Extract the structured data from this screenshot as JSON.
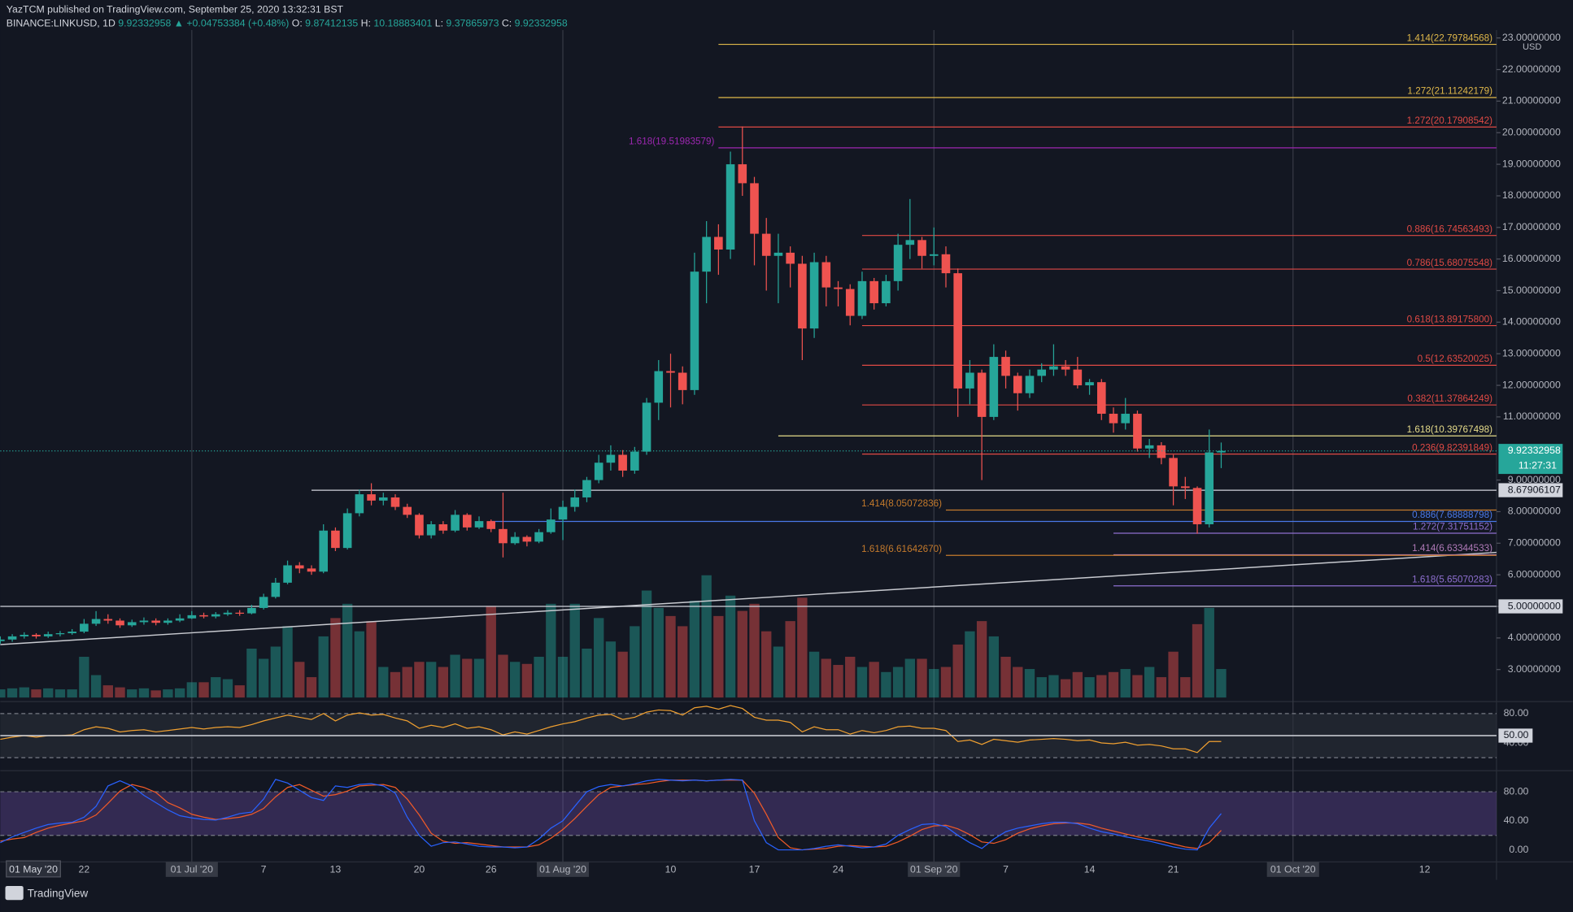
{
  "header": {
    "author": "YazTCM published on TradingView.com, September 25, 2020 13:32:31 BST",
    "symbol": "BINANCE:LINKUSD, 1D",
    "change": "▲ +0.04753384 (+0.48%)",
    "o": "O:",
    "h": "H:",
    "l": "L:",
    "c": "C:",
    "countdown": "11:27:31",
    "currency": "USD",
    "range_label": "01 May '20",
    "brand": "TradingView"
  },
  "chart_data": {
    "type": "candlestick",
    "x": [
      "2020-06-15",
      "2020-06-16",
      "2020-06-17",
      "2020-06-18",
      "2020-06-19",
      "2020-06-20",
      "2020-06-21",
      "2020-06-22",
      "2020-06-23",
      "2020-06-24",
      "2020-06-25",
      "2020-06-26",
      "2020-06-27",
      "2020-06-28",
      "2020-06-29",
      "2020-06-30",
      "2020-07-01",
      "2020-07-02",
      "2020-07-03",
      "2020-07-04",
      "2020-07-05",
      "2020-07-06",
      "2020-07-07",
      "2020-07-08",
      "2020-07-09",
      "2020-07-10",
      "2020-07-11",
      "2020-07-12",
      "2020-07-13",
      "2020-07-14",
      "2020-07-15",
      "2020-07-16",
      "2020-07-17",
      "2020-07-18",
      "2020-07-19",
      "2020-07-20",
      "2020-07-21",
      "2020-07-22",
      "2020-07-23",
      "2020-07-24",
      "2020-07-25",
      "2020-07-26",
      "2020-07-27",
      "2020-07-28",
      "2020-07-29",
      "2020-07-30",
      "2020-07-31",
      "2020-08-01",
      "2020-08-02",
      "2020-08-03",
      "2020-08-04",
      "2020-08-05",
      "2020-08-06",
      "2020-08-07",
      "2020-08-08",
      "2020-08-09",
      "2020-08-10",
      "2020-08-11",
      "2020-08-12",
      "2020-08-13",
      "2020-08-14",
      "2020-08-15",
      "2020-08-16",
      "2020-08-17",
      "2020-08-18",
      "2020-08-19",
      "2020-08-20",
      "2020-08-21",
      "2020-08-22",
      "2020-08-23",
      "2020-08-24",
      "2020-08-25",
      "2020-08-26",
      "2020-08-27",
      "2020-08-28",
      "2020-08-29",
      "2020-08-30",
      "2020-08-31",
      "2020-09-01",
      "2020-09-02",
      "2020-09-03",
      "2020-09-04",
      "2020-09-05",
      "2020-09-06",
      "2020-09-07",
      "2020-09-08",
      "2020-09-09",
      "2020-09-10",
      "2020-09-11",
      "2020-09-12",
      "2020-09-13",
      "2020-09-14",
      "2020-09-15",
      "2020-09-16",
      "2020-09-17",
      "2020-09-18",
      "2020-09-19",
      "2020-09-20",
      "2020-09-21",
      "2020-09-22",
      "2020-09-23",
      "2020-09-24",
      "2020-09-25"
    ],
    "open": [
      3.9,
      3.95,
      4.05,
      4.1,
      4.05,
      4.12,
      4.15,
      4.2,
      4.45,
      4.6,
      4.55,
      4.4,
      4.5,
      4.55,
      4.48,
      4.55,
      4.62,
      4.72,
      4.68,
      4.75,
      4.8,
      4.78,
      4.95,
      5.3,
      5.75,
      6.3,
      6.2,
      6.1,
      7.4,
      6.85,
      7.95,
      8.55,
      8.35,
      8.45,
      8.15,
      7.9,
      7.25,
      7.6,
      7.4,
      7.9,
      7.5,
      7.7,
      7.45,
      7.0,
      7.2,
      7.05,
      7.35,
      7.75,
      8.15,
      8.45,
      9.0,
      9.55,
      9.8,
      9.3,
      9.9,
      11.45,
      12.45,
      12.4,
      11.85,
      15.6,
      16.7,
      16.3,
      19.0,
      18.4,
      16.8,
      16.1,
      16.2,
      15.85,
      13.8,
      15.9,
      15.1,
      15.05,
      14.2,
      15.3,
      14.6,
      15.3,
      16.45,
      16.6,
      16.1,
      16.15,
      15.55,
      11.9,
      12.4,
      11.0,
      12.9,
      12.3,
      11.75,
      12.3,
      12.5,
      12.6,
      12.5,
      12.0,
      12.1,
      11.1,
      10.8,
      11.1,
      10.0,
      10.1,
      9.7,
      8.8,
      8.75,
      7.6,
      9.87412135
    ],
    "high": [
      4.05,
      4.12,
      4.18,
      4.15,
      4.2,
      4.22,
      4.28,
      4.6,
      4.85,
      4.75,
      4.62,
      4.58,
      4.65,
      4.62,
      4.62,
      4.75,
      4.85,
      4.8,
      4.82,
      4.88,
      4.88,
      5.05,
      5.4,
      5.9,
      6.45,
      6.4,
      6.3,
      7.6,
      7.5,
      8.1,
      8.7,
      8.9,
      8.6,
      8.55,
      8.25,
      7.95,
      7.7,
      7.7,
      8.05,
      7.95,
      7.85,
      7.75,
      8.6,
      7.35,
      7.25,
      7.45,
      8.1,
      8.35,
      8.7,
      9.1,
      9.8,
      10.1,
      9.95,
      10.05,
      11.6,
      12.8,
      13.0,
      12.6,
      16.2,
      17.2,
      17.1,
      19.4,
      20.2,
      18.6,
      17.3,
      16.8,
      16.4,
      16.1,
      16.2,
      16.1,
      15.3,
      15.2,
      15.6,
      15.4,
      15.5,
      16.8,
      17.9,
      16.7,
      17.0,
      16.4,
      15.7,
      12.8,
      12.5,
      13.3,
      13.1,
      12.4,
      12.5,
      12.7,
      13.3,
      12.8,
      12.9,
      12.2,
      12.2,
      11.3,
      11.6,
      11.2,
      10.3,
      10.2,
      9.8,
      9.1,
      8.8,
      10.6,
      10.18883401
    ],
    "low": [
      3.82,
      3.88,
      3.98,
      3.98,
      4.0,
      4.05,
      4.1,
      4.15,
      4.38,
      4.45,
      4.32,
      4.35,
      4.42,
      4.4,
      4.42,
      4.5,
      4.6,
      4.62,
      4.62,
      4.7,
      4.7,
      4.75,
      4.9,
      5.25,
      5.7,
      6.05,
      6.0,
      6.05,
      6.75,
      6.8,
      7.85,
      8.2,
      8.2,
      8.05,
      7.8,
      7.15,
      7.15,
      7.3,
      7.35,
      7.4,
      7.45,
      7.35,
      6.55,
      6.95,
      6.9,
      7.0,
      7.3,
      7.1,
      8.0,
      8.3,
      8.9,
      9.3,
      9.1,
      9.2,
      9.8,
      10.9,
      11.3,
      11.4,
      11.7,
      14.6,
      15.5,
      16.0,
      18.0,
      15.8,
      15.0,
      14.6,
      15.1,
      12.8,
      13.5,
      14.5,
      14.5,
      13.9,
      14.1,
      14.4,
      14.5,
      15.0,
      16.0,
      15.7,
      15.8,
      15.1,
      11.0,
      11.4,
      9.0,
      10.9,
      11.9,
      11.2,
      11.6,
      12.1,
      12.3,
      12.3,
      11.9,
      11.7,
      10.9,
      10.5,
      10.6,
      9.9,
      9.7,
      9.5,
      8.2,
      8.4,
      7.3,
      7.5,
      9.37865973
    ],
    "close": [
      3.95,
      4.05,
      4.1,
      4.05,
      4.12,
      4.15,
      4.2,
      4.45,
      4.6,
      4.55,
      4.4,
      4.5,
      4.55,
      4.48,
      4.55,
      4.62,
      4.72,
      4.68,
      4.75,
      4.8,
      4.78,
      4.95,
      5.3,
      5.75,
      6.3,
      6.2,
      6.1,
      7.4,
      6.85,
      7.95,
      8.55,
      8.35,
      8.45,
      8.15,
      7.9,
      7.25,
      7.6,
      7.4,
      7.9,
      7.5,
      7.7,
      7.45,
      7.0,
      7.2,
      7.05,
      7.35,
      7.75,
      8.15,
      8.45,
      9.0,
      9.55,
      9.8,
      9.3,
      9.9,
      11.45,
      12.45,
      12.4,
      11.85,
      15.6,
      16.7,
      16.3,
      19.0,
      18.4,
      16.8,
      16.1,
      16.2,
      15.85,
      13.8,
      15.9,
      15.1,
      15.05,
      14.2,
      15.3,
      14.6,
      15.3,
      16.45,
      16.6,
      16.1,
      16.15,
      15.55,
      11.9,
      12.4,
      11.0,
      12.9,
      12.3,
      11.75,
      12.3,
      12.5,
      12.6,
      12.5,
      12.0,
      12.1,
      11.1,
      10.8,
      11.1,
      10.0,
      10.1,
      9.7,
      8.8,
      8.75,
      7.6,
      9.87579574,
      9.92332958
    ],
    "volume": [
      8,
      9,
      10,
      8,
      9,
      8,
      8,
      40,
      22,
      12,
      10,
      8,
      9,
      7,
      8,
      9,
      15,
      15,
      20,
      18,
      12,
      48,
      38,
      50,
      70,
      35,
      20,
      60,
      78,
      92,
      65,
      75,
      30,
      25,
      30,
      35,
      35,
      30,
      42,
      38,
      38,
      90,
      42,
      35,
      33,
      40,
      92,
      40,
      92,
      48,
      78,
      55,
      45,
      70,
      105,
      88,
      80,
      70,
      95,
      120,
      80,
      100,
      85,
      92,
      65,
      50,
      75,
      98,
      45,
      38,
      32,
      40,
      30,
      35,
      25,
      30,
      38,
      38,
      28,
      30,
      52,
      65,
      75,
      60,
      40,
      30,
      28,
      20,
      22,
      18,
      25,
      20,
      22,
      25,
      28,
      22,
      30,
      20,
      45,
      20,
      72,
      88,
      28
    ],
    "up_color": "#26a69a",
    "down_color": "#ef5350",
    "xlim": [
      "2020-06-15",
      "2020-10-18"
    ],
    "xticks": [
      {
        "value": "2020-06-22",
        "label": "22"
      },
      {
        "value": "2020-07-01",
        "label": "01 Jul '20"
      },
      {
        "value": "2020-07-07",
        "label": "7"
      },
      {
        "value": "2020-07-13",
        "label": "13"
      },
      {
        "value": "2020-07-20",
        "label": "20"
      },
      {
        "value": "2020-07-26",
        "label": "26"
      },
      {
        "value": "2020-08-01",
        "label": "01 Aug '20"
      },
      {
        "value": "2020-08-10",
        "label": "10"
      },
      {
        "value": "2020-08-17",
        "label": "17"
      },
      {
        "value": "2020-08-24",
        "label": "24"
      },
      {
        "value": "2020-09-01",
        "label": "01 Sep '20"
      },
      {
        "value": "2020-09-07",
        "label": "7"
      },
      {
        "value": "2020-09-14",
        "label": "14"
      },
      {
        "value": "2020-09-21",
        "label": "21"
      },
      {
        "value": "2020-10-01",
        "label": "01 Oct '20"
      },
      {
        "value": "2020-10-12",
        "label": "12"
      }
    ],
    "ylim": [
      2.05,
      23.25
    ],
    "yticks": [
      {
        "value": 3,
        "label": "3.00000000"
      },
      {
        "value": 4,
        "label": "4.00000000"
      },
      {
        "value": 5,
        "label": "5.00000000"
      },
      {
        "value": 6,
        "label": "6.00000000"
      },
      {
        "value": 7,
        "label": "7.00000000"
      },
      {
        "value": 8,
        "label": "8.00000000"
      },
      {
        "value": 9,
        "label": "9.00000000"
      },
      {
        "value": 11,
        "label": "11.00000000"
      },
      {
        "value": 12,
        "label": "12.00000000"
      },
      {
        "value": 13,
        "label": "13.00000000"
      },
      {
        "value": 14,
        "label": "14.00000000"
      },
      {
        "value": 15,
        "label": "15.00000000"
      },
      {
        "value": 16,
        "label": "16.00000000"
      },
      {
        "value": 17,
        "label": "17.00000000"
      },
      {
        "value": 18,
        "label": "18.00000000"
      },
      {
        "value": 19,
        "label": "19.00000000"
      },
      {
        "value": 20,
        "label": "20.00000000"
      },
      {
        "value": 21,
        "label": "21.00000000"
      },
      {
        "value": 22,
        "label": "22.00000000"
      },
      {
        "value": 23,
        "label": "23.00000000"
      }
    ],
    "trendline": {
      "from": 3.79,
      "to": 6.71,
      "color": "#c8cad0"
    },
    "levels": [
      {
        "value": 22.79784568,
        "label": "1.414(22.79784568)",
        "color": "#e0b84a",
        "start": "2020-08-14",
        "label_side": "right"
      },
      {
        "value": 21.11242179,
        "label": "1.272(21.11242179)",
        "color": "#e0b84a",
        "start": "2020-08-14",
        "label_side": "right"
      },
      {
        "value": 20.17908542,
        "label": "1.272(20.17908542)",
        "color": "#e04a45",
        "start": "2020-08-14",
        "label_side": "right"
      },
      {
        "value": 19.51983579,
        "label": "1.618(19.51983579)",
        "color": "#9c27b0",
        "start": "2020-08-14",
        "label_side": "left"
      },
      {
        "value": 16.74563493,
        "label": "0.886(16.74563493)",
        "color": "#e04a45",
        "start": "2020-08-26",
        "label_side": "right"
      },
      {
        "value": 15.68075548,
        "label": "0.786(15.68075548)",
        "color": "#e04a45",
        "start": "2020-08-26",
        "label_side": "right"
      },
      {
        "value": 13.891758,
        "label": "0.618(13.89175800)",
        "color": "#e04a45",
        "start": "2020-08-26",
        "label_side": "right"
      },
      {
        "value": 12.63520025,
        "label": "0.5(12.63520025)",
        "color": "#e04a45",
        "start": "2020-08-26",
        "label_side": "right"
      },
      {
        "value": 11.37864249,
        "label": "0.382(11.37864249)",
        "color": "#e04a45",
        "start": "2020-08-26",
        "label_side": "right"
      },
      {
        "value": 10.39767498,
        "label": "1.618(10.39767498)",
        "color": "#e6dc8a",
        "start": "2020-08-19",
        "label_side": "right"
      },
      {
        "value": 9.82391849,
        "label": "0.236(9.82391849)",
        "color": "#e04a45",
        "start": "2020-08-26",
        "label_side": "right"
      },
      {
        "value": 8.67906107,
        "axis_label": "8.67906107",
        "color": "#d1d4dc",
        "start": "2020-07-11"
      },
      {
        "value": 8.05072836,
        "label": "1.414(8.05072836)",
        "color": "#c47a2c",
        "start": "2020-09-02",
        "label_side": "left"
      },
      {
        "value": 7.68888798,
        "label": "0.886(7.68888798)",
        "color": "#4a78e8",
        "start": "2020-07-26",
        "label_side": "right"
      },
      {
        "value": 7.31751152,
        "label": "1.272(7.31751152)",
        "color": "#8e6fd0",
        "start": "2020-09-16",
        "label_side": "right"
      },
      {
        "value": 6.63344533,
        "label": "1.414(6.63344533)",
        "color": "#b07ab8",
        "start": "2020-09-16",
        "label_side": "right"
      },
      {
        "value": 6.6164267,
        "label": "1.618(6.61642670)",
        "color": "#c47a2c",
        "start": "2020-09-02",
        "label_side": "left"
      },
      {
        "value": 5.65070283,
        "label": "1.618(5.65070283)",
        "color": "#8e6fd0",
        "start": "2020-09-16",
        "label_side": "right"
      },
      {
        "value": 5,
        "axis_label": "5.00000000",
        "color": "#d1d4dc",
        "start": "2020-06-15"
      }
    ],
    "rsi": {
      "color": "#f0a030",
      "ylim": [
        3.6,
        96.4
      ],
      "yticks": [
        {
          "value": 80,
          "label": "80.00"
        },
        {
          "value": 40,
          "label": "40.00"
        }
      ],
      "bands": [
        80,
        20
      ],
      "level": {
        "value": 50,
        "label": "50.00"
      },
      "values": [
        45,
        48,
        50,
        48,
        50,
        50,
        51,
        58,
        62,
        60,
        55,
        57,
        58,
        55,
        57,
        59,
        61,
        59,
        61,
        62,
        61,
        65,
        70,
        74,
        78,
        75,
        72,
        80,
        70,
        78,
        81,
        78,
        79,
        74,
        70,
        60,
        64,
        61,
        66,
        60,
        62,
        58,
        51,
        55,
        52,
        57,
        62,
        66,
        69,
        74,
        78,
        79,
        72,
        75,
        82,
        85,
        84,
        78,
        88,
        90,
        86,
        91,
        87,
        75,
        71,
        71,
        68,
        55,
        62,
        58,
        58,
        52,
        57,
        54,
        57,
        62,
        63,
        60,
        60,
        57,
        42,
        44,
        38,
        45,
        43,
        41,
        44,
        45,
        46,
        45,
        43,
        44,
        40,
        39,
        41,
        37,
        38,
        36,
        32,
        32,
        27,
        42,
        42
      ]
    },
    "stoch": {
      "ylim": [
        -16.5,
        107.6
      ],
      "yticks": [
        {
          "value": 80,
          "label": "80.00"
        },
        {
          "value": 40,
          "label": "40.00"
        },
        {
          "value": 0,
          "label": "0.00"
        }
      ],
      "bands": [
        80,
        20
      ],
      "k": {
        "color": "#2962ff",
        "values": [
          10,
          18,
          24,
          30,
          35,
          37,
          38,
          45,
          60,
          88,
          95,
          88,
          75,
          65,
          55,
          47,
          44,
          42,
          41,
          45,
          50,
          52,
          70,
          97,
          92,
          82,
          72,
          68,
          88,
          86,
          90,
          91,
          88,
          78,
          45,
          20,
          5,
          10,
          11,
          8,
          5,
          4,
          4,
          3,
          4,
          15,
          30,
          40,
          60,
          80,
          87,
          90,
          88,
          91,
          95,
          97,
          96,
          95,
          96,
          95,
          96,
          97,
          96,
          40,
          10,
          0,
          0,
          0,
          2,
          5,
          7,
          5,
          3,
          4,
          8,
          20,
          28,
          35,
          36,
          32,
          20,
          10,
          2,
          15,
          25,
          30,
          33,
          36,
          38,
          38,
          36,
          30,
          25,
          22,
          18,
          15,
          12,
          8,
          4,
          1,
          0,
          30,
          50
        ]
      },
      "d": {
        "color": "#f05a28",
        "values": [
          12,
          15,
          17,
          24,
          30,
          34,
          37,
          40,
          48,
          64,
          81,
          90,
          86,
          79,
          65,
          58,
          49,
          45,
          42,
          43,
          45,
          49,
          57,
          73,
          86,
          90,
          82,
          74,
          76,
          81,
          88,
          89,
          90,
          86,
          70,
          48,
          23,
          12,
          9,
          10,
          8,
          6,
          4,
          4,
          4,
          7,
          16,
          28,
          43,
          60,
          76,
          86,
          88,
          90,
          91,
          94,
          96,
          96,
          96,
          95,
          96,
          96,
          96,
          78,
          49,
          17,
          3,
          0,
          1,
          2,
          5,
          6,
          5,
          4,
          5,
          11,
          19,
          28,
          33,
          34,
          29,
          21,
          11,
          9,
          14,
          23,
          29,
          33,
          36,
          37,
          37,
          35,
          30,
          26,
          22,
          18,
          15,
          12,
          8,
          4,
          2,
          10,
          27
        ]
      }
    }
  }
}
